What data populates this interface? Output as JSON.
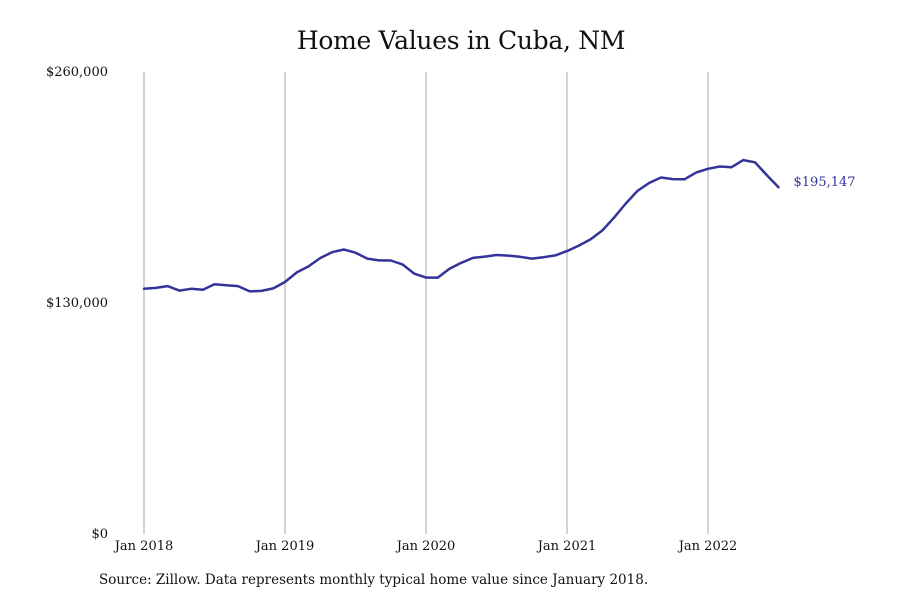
{
  "chart_data": {
    "type": "line",
    "title": "Home Values in Cuba, NM",
    "xlabel": "",
    "ylabel": "",
    "ylim": [
      0,
      260000
    ],
    "y_ticks": [
      {
        "value": 0,
        "label": "$0"
      },
      {
        "value": 130000,
        "label": "$130,000"
      },
      {
        "value": 260000,
        "label": "$260,000"
      }
    ],
    "x_ticks": [
      {
        "value": "2018-01",
        "label": "Jan 2018"
      },
      {
        "value": "2019-01",
        "label": "Jan 2019"
      },
      {
        "value": "2020-01",
        "label": "Jan 2020"
      },
      {
        "value": "2021-01",
        "label": "Jan 2021"
      },
      {
        "value": "2022-01",
        "label": "Jan 2022"
      }
    ],
    "grid": "vertical lines at x ticks",
    "series": [
      {
        "color": "#33339a",
        "x": [
          "2018-01",
          "2018-02",
          "2018-03",
          "2018-04",
          "2018-05",
          "2018-06",
          "2018-07",
          "2018-08",
          "2018-09",
          "2018-10",
          "2018-11",
          "2018-12",
          "2019-01",
          "2019-02",
          "2019-03",
          "2019-04",
          "2019-05",
          "2019-06",
          "2019-07",
          "2019-08",
          "2019-09",
          "2019-10",
          "2019-11",
          "2019-12",
          "2020-01",
          "2020-02",
          "2020-03",
          "2020-04",
          "2020-05",
          "2020-06",
          "2020-07",
          "2020-08",
          "2020-09",
          "2020-10",
          "2020-11",
          "2020-12",
          "2021-01",
          "2021-02",
          "2021-03",
          "2021-04",
          "2021-05",
          "2021-06",
          "2021-07",
          "2021-08",
          "2021-09",
          "2021-10",
          "2021-11",
          "2021-12",
          "2022-01",
          "2022-02",
          "2022-03",
          "2022-04",
          "2022-05",
          "2022-06",
          "2022-07"
        ],
        "values": [
          138000,
          138500,
          139500,
          137000,
          138000,
          137500,
          140500,
          140000,
          139500,
          136500,
          136800,
          138200,
          141800,
          147200,
          150600,
          155300,
          158600,
          160100,
          158300,
          155000,
          154000,
          153900,
          151700,
          146500,
          144300,
          144300,
          149300,
          152600,
          155400,
          156100,
          157000,
          156700,
          156000,
          155000,
          155800,
          156800,
          159200,
          162300,
          165800,
          170800,
          178000,
          186000,
          193100,
          197600,
          200600,
          199700,
          199600,
          203500,
          205500,
          206800,
          206400,
          210400,
          209200,
          202000,
          195147
        ]
      }
    ],
    "end_label": "$195,147"
  },
  "source_note": "Source: Zillow. Data represents monthly typical home value since January 2018."
}
